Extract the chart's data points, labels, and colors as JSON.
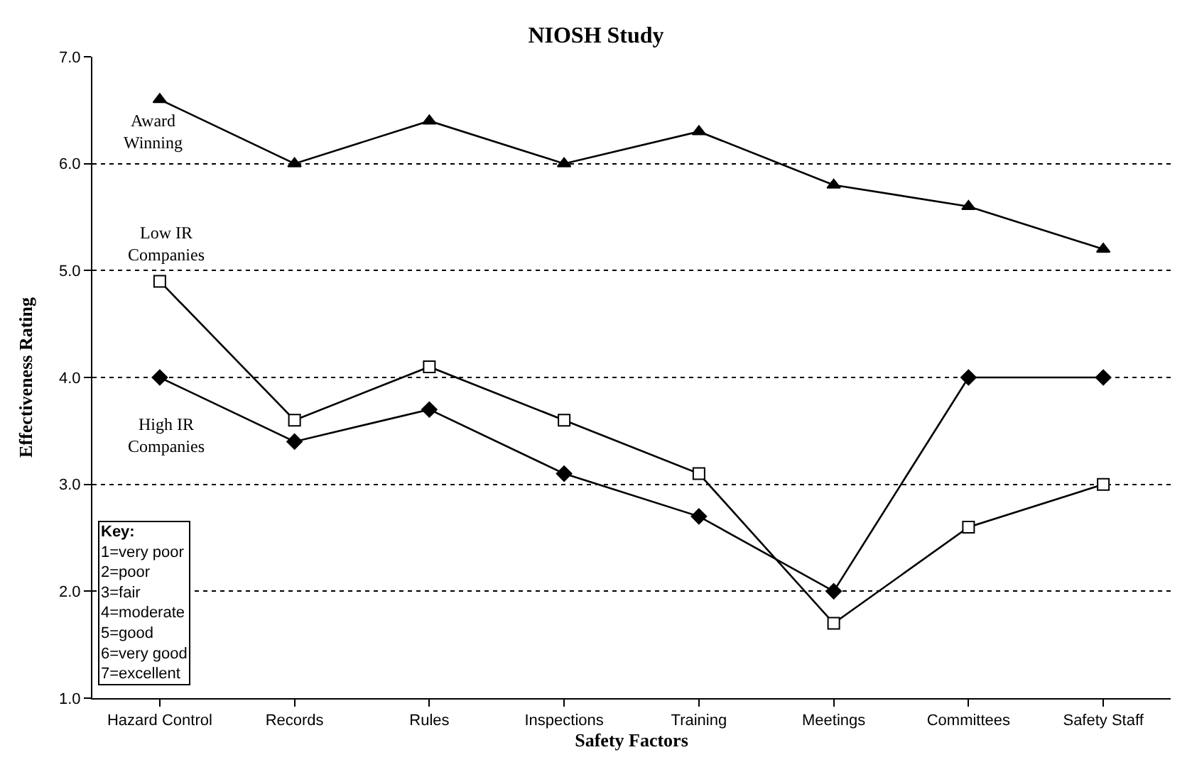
{
  "chart_data": {
    "type": "line",
    "title": "NIOSH Study",
    "xlabel": "Safety Factors",
    "ylabel": "Effectiveness Rating",
    "categories": [
      "Hazard Control",
      "Records",
      "Rules",
      "Inspections",
      "Training",
      "Meetings",
      "Committees",
      "Safety Staff"
    ],
    "series": [
      {
        "name": "Award Winning",
        "color": "#000000",
        "marker": "triangle",
        "values": [
          6.6,
          6.0,
          6.4,
          6.0,
          6.3,
          5.8,
          5.6,
          5.2
        ]
      },
      {
        "name": "Low IR Companies",
        "color": "#000000",
        "marker": "square",
        "values": [
          4.9,
          3.6,
          4.1,
          3.6,
          3.1,
          1.7,
          2.6,
          3.0
        ]
      },
      {
        "name": "High IR Companies",
        "color": "#000000",
        "marker": "diamond",
        "values": [
          4.0,
          3.4,
          3.7,
          3.1,
          2.7,
          2.0,
          4.0,
          4.0
        ]
      }
    ],
    "ylim": [
      1,
      7
    ],
    "yticks": [
      {
        "value": 1,
        "label": "1.0"
      },
      {
        "value": 2,
        "label": "2.0"
      },
      {
        "value": 3,
        "label": "3.0"
      },
      {
        "value": 4,
        "label": "4.0"
      },
      {
        "value": 5,
        "label": "5.0"
      },
      {
        "value": 6,
        "label": "6.0"
      },
      {
        "value": 7,
        "label": "7.0"
      }
    ],
    "grid": "y",
    "legend": false,
    "line_style": "solid",
    "annotations": [
      "Key:\n1=very poor\n2=poor\n3=fair\n4=moderate\n5=good\n6=very good\n7=excellent"
    ]
  }
}
